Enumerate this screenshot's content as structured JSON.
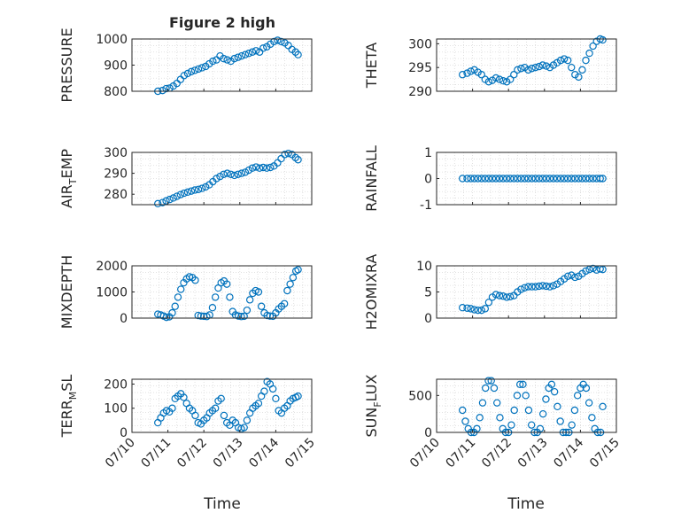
{
  "figure": {
    "title": "Figure 2 high",
    "xlabel": "Time",
    "marker_color": "#0072BD",
    "x_ticks": [
      "07/10",
      "07/11",
      "07/12",
      "07/13",
      "07/14",
      "07/15"
    ]
  },
  "chart_data": [
    {
      "type": "scatter",
      "ylabel": "PRESSURE",
      "ylim": [
        800,
        1000
      ],
      "yticks": [
        "800",
        "900",
        "1000"
      ],
      "x": [
        0.72,
        0.85,
        0.95,
        1.05,
        1.15,
        1.25,
        1.35,
        1.45,
        1.55,
        1.65,
        1.75,
        1.85,
        1.95,
        2.05,
        2.15,
        2.25,
        2.35,
        2.45,
        2.55,
        2.65,
        2.75,
        2.85,
        2.95,
        3.05,
        3.15,
        3.25,
        3.35,
        3.45,
        3.55,
        3.65,
        3.75,
        3.85,
        3.95,
        4.05,
        4.15,
        4.25,
        4.35,
        4.45,
        4.55,
        4.62
      ],
      "values": [
        800,
        803,
        810,
        812,
        820,
        830,
        845,
        860,
        868,
        875,
        880,
        885,
        890,
        895,
        905,
        915,
        920,
        935,
        925,
        920,
        915,
        925,
        930,
        935,
        940,
        945,
        950,
        955,
        950,
        965,
        970,
        980,
        990,
        995,
        990,
        985,
        975,
        960,
        950,
        940
      ]
    },
    {
      "type": "scatter",
      "ylabel": "THETA",
      "ylim": [
        290,
        301
      ],
      "yticks": [
        "290",
        "295",
        "300"
      ],
      "x": [
        0.72,
        0.85,
        0.95,
        1.05,
        1.15,
        1.25,
        1.35,
        1.45,
        1.55,
        1.65,
        1.75,
        1.85,
        1.95,
        2.05,
        2.15,
        2.25,
        2.35,
        2.45,
        2.55,
        2.65,
        2.75,
        2.85,
        2.95,
        3.05,
        3.15,
        3.25,
        3.35,
        3.45,
        3.55,
        3.65,
        3.75,
        3.85,
        3.95,
        4.05,
        4.15,
        4.25,
        4.35,
        4.45,
        4.55,
        4.62
      ],
      "values": [
        293.5,
        293.8,
        294.2,
        294.5,
        294.0,
        293.5,
        292.5,
        292.0,
        292.3,
        292.8,
        292.5,
        292.2,
        292.0,
        292.5,
        293.5,
        294.5,
        294.8,
        295.0,
        294.5,
        294.8,
        295.0,
        295.2,
        295.5,
        295.3,
        295.0,
        295.5,
        296.0,
        296.5,
        296.8,
        296.5,
        295.0,
        293.5,
        293.0,
        294.5,
        296.5,
        298.0,
        299.5,
        300.5,
        301.0,
        300.8
      ]
    },
    {
      "type": "scatter",
      "ylabel": "AIR_TEMP",
      "ylim": [
        275,
        300
      ],
      "yticks": [
        "280",
        "290",
        "300"
      ],
      "x": [
        0.72,
        0.85,
        0.95,
        1.05,
        1.15,
        1.25,
        1.35,
        1.45,
        1.55,
        1.65,
        1.75,
        1.85,
        1.95,
        2.05,
        2.15,
        2.25,
        2.35,
        2.45,
        2.55,
        2.65,
        2.75,
        2.85,
        2.95,
        3.05,
        3.15,
        3.25,
        3.35,
        3.45,
        3.55,
        3.65,
        3.75,
        3.85,
        3.95,
        4.05,
        4.15,
        4.25,
        4.35,
        4.45,
        4.55,
        4.62
      ],
      "values": [
        275.5,
        276.0,
        276.8,
        277.5,
        278.2,
        279.0,
        279.8,
        280.5,
        281.0,
        281.5,
        282.0,
        282.3,
        282.8,
        283.5,
        284.5,
        286.0,
        287.5,
        288.5,
        289.5,
        290.0,
        289.5,
        289.0,
        289.5,
        290.0,
        290.5,
        291.5,
        292.5,
        293.0,
        292.5,
        292.8,
        292.5,
        292.8,
        293.5,
        295.0,
        297.0,
        299.0,
        299.5,
        299.0,
        297.5,
        296.5
      ]
    },
    {
      "type": "scatter",
      "ylabel": "RAINFALL",
      "ylim": [
        -1,
        1
      ],
      "yticks": [
        "-1",
        "0",
        "1"
      ],
      "x": [
        0.72,
        0.85,
        0.95,
        1.05,
        1.15,
        1.25,
        1.35,
        1.45,
        1.55,
        1.65,
        1.75,
        1.85,
        1.95,
        2.05,
        2.15,
        2.25,
        2.35,
        2.45,
        2.55,
        2.65,
        2.75,
        2.85,
        2.95,
        3.05,
        3.15,
        3.25,
        3.35,
        3.45,
        3.55,
        3.65,
        3.75,
        3.85,
        3.95,
        4.05,
        4.15,
        4.25,
        4.35,
        4.45,
        4.55,
        4.62
      ],
      "values": [
        0,
        0,
        0,
        0,
        0,
        0,
        0,
        0,
        0,
        0,
        0,
        0,
        0,
        0,
        0,
        0,
        0,
        0,
        0,
        0,
        0,
        0,
        0,
        0,
        0,
        0,
        0,
        0,
        0,
        0,
        0,
        0,
        0,
        0,
        0,
        0,
        0,
        0,
        0,
        0
      ]
    },
    {
      "type": "scatter",
      "ylabel": "MIXDEPTH",
      "ylim": [
        0,
        2000
      ],
      "yticks": [
        "0",
        "1000",
        "2000"
      ],
      "x": [
        0.72,
        0.8,
        0.88,
        0.96,
        1.04,
        1.12,
        1.2,
        1.28,
        1.36,
        1.44,
        1.52,
        1.6,
        1.68,
        1.76,
        1.84,
        1.92,
        2.0,
        2.08,
        2.16,
        2.24,
        2.32,
        2.4,
        2.48,
        2.56,
        2.64,
        2.72,
        2.8,
        2.88,
        2.96,
        3.04,
        3.12,
        3.2,
        3.28,
        3.36,
        3.44,
        3.52,
        3.6,
        3.68,
        3.76,
        3.84,
        3.92,
        4.0,
        4.08,
        4.16,
        4.24,
        4.32,
        4.4,
        4.48,
        4.56,
        4.62
      ],
      "values": [
        150,
        120,
        80,
        30,
        50,
        200,
        450,
        800,
        1100,
        1350,
        1500,
        1580,
        1550,
        1450,
        100,
        80,
        70,
        60,
        120,
        400,
        800,
        1150,
        1350,
        1420,
        1300,
        800,
        250,
        120,
        80,
        60,
        70,
        300,
        700,
        950,
        1050,
        1000,
        450,
        200,
        100,
        80,
        70,
        200,
        350,
        450,
        550,
        1050,
        1300,
        1550,
        1800,
        1850
      ]
    },
    {
      "type": "scatter",
      "ylabel": "H2OMIXRA",
      "ylim": [
        0,
        10
      ],
      "yticks": [
        "0",
        "5",
        "10"
      ],
      "x": [
        0.72,
        0.85,
        0.95,
        1.05,
        1.15,
        1.25,
        1.35,
        1.45,
        1.55,
        1.65,
        1.75,
        1.85,
        1.95,
        2.05,
        2.15,
        2.25,
        2.35,
        2.45,
        2.55,
        2.65,
        2.75,
        2.85,
        2.95,
        3.05,
        3.15,
        3.25,
        3.35,
        3.45,
        3.55,
        3.65,
        3.75,
        3.85,
        3.95,
        4.05,
        4.15,
        4.25,
        4.35,
        4.45,
        4.55,
        4.62
      ],
      "values": [
        2.0,
        1.9,
        1.8,
        1.6,
        1.5,
        1.5,
        1.8,
        3.0,
        4.0,
        4.5,
        4.3,
        4.2,
        4.0,
        4.1,
        4.3,
        5.0,
        5.5,
        5.8,
        6.0,
        6.0,
        6.0,
        6.1,
        6.2,
        6.1,
        6.0,
        6.2,
        6.5,
        7.0,
        7.5,
        8.0,
        8.2,
        7.8,
        8.0,
        8.5,
        9.0,
        9.3,
        9.5,
        9.2,
        9.4,
        9.3
      ]
    },
    {
      "type": "scatter",
      "ylabel": "TERR_MSL",
      "ylim": [
        0,
        220
      ],
      "yticks": [
        "0",
        "100",
        "200"
      ],
      "x": [
        0.72,
        0.8,
        0.88,
        0.96,
        1.04,
        1.12,
        1.2,
        1.28,
        1.36,
        1.44,
        1.52,
        1.6,
        1.68,
        1.76,
        1.84,
        1.92,
        2.0,
        2.08,
        2.16,
        2.24,
        2.32,
        2.4,
        2.48,
        2.56,
        2.64,
        2.72,
        2.8,
        2.88,
        2.96,
        3.04,
        3.12,
        3.2,
        3.28,
        3.36,
        3.44,
        3.52,
        3.6,
        3.68,
        3.76,
        3.84,
        3.92,
        4.0,
        4.08,
        4.16,
        4.24,
        4.32,
        4.4,
        4.48,
        4.56,
        4.62
      ],
      "values": [
        40,
        60,
        80,
        90,
        85,
        100,
        140,
        150,
        160,
        145,
        120,
        100,
        90,
        70,
        40,
        35,
        50,
        60,
        80,
        90,
        100,
        130,
        140,
        70,
        40,
        30,
        50,
        40,
        20,
        15,
        20,
        50,
        80,
        100,
        110,
        120,
        150,
        170,
        210,
        200,
        180,
        140,
        90,
        80,
        100,
        110,
        130,
        140,
        145,
        150
      ]
    },
    {
      "type": "scatter",
      "ylabel": "SUN_FLUX",
      "ylim": [
        0,
        720
      ],
      "yticks": [
        "0",
        "500"
      ],
      "x": [
        0.72,
        0.8,
        0.88,
        0.96,
        1.04,
        1.12,
        1.2,
        1.28,
        1.36,
        1.44,
        1.52,
        1.6,
        1.68,
        1.76,
        1.84,
        1.92,
        2.0,
        2.08,
        2.16,
        2.24,
        2.32,
        2.4,
        2.48,
        2.56,
        2.64,
        2.72,
        2.8,
        2.88,
        2.96,
        3.04,
        3.12,
        3.2,
        3.28,
        3.36,
        3.44,
        3.52,
        3.6,
        3.68,
        3.76,
        3.84,
        3.92,
        4.0,
        4.08,
        4.16,
        4.24,
        4.32,
        4.4,
        4.48,
        4.56,
        4.62
      ],
      "values": [
        300,
        150,
        50,
        0,
        0,
        50,
        200,
        400,
        600,
        700,
        700,
        600,
        400,
        200,
        50,
        0,
        0,
        100,
        300,
        500,
        650,
        650,
        500,
        300,
        100,
        0,
        0,
        50,
        250,
        450,
        600,
        650,
        550,
        350,
        150,
        0,
        0,
        0,
        100,
        300,
        500,
        600,
        650,
        600,
        400,
        200,
        50,
        0,
        0,
        350
      ]
    }
  ]
}
